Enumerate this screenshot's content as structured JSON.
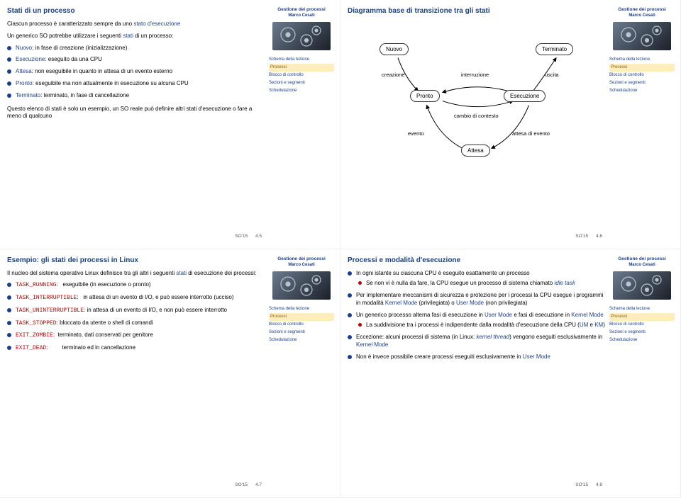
{
  "course": {
    "title": "Gestione dei processi",
    "author": "Marco Cesati",
    "code": "SO'15"
  },
  "nav": {
    "items": [
      "Schema della lezione",
      "Processi",
      "Blocco di controllo",
      "Sezioni e segmenti",
      "Schedulazione"
    ],
    "active_index": 1
  },
  "colors": {
    "blue": "#1a3f8a",
    "red": "#c00000",
    "bullet_blue": "#1a3f8a",
    "bullet_red": "#c00000"
  },
  "slide1": {
    "page": "4.5",
    "title": "Stati di un processo",
    "intro_a": "Ciascun processo è caratterizzato sempre da uno ",
    "intro_b": "stato d'esecuzione",
    "lead": "Un generico SO potrebbe utilizzare i seguenti ",
    "lead_hl": "stati",
    "lead_tail": " di un processo:",
    "items": [
      {
        "t": "Nuovo",
        "d": ": in fase di creazione (inizializzazione)"
      },
      {
        "t": "Esecuzione",
        "d": ": eseguito da una CPU"
      },
      {
        "t": "Attesa",
        "d": ": non eseguibile in quanto in attesa di un evento esterno"
      },
      {
        "t": "Pronto",
        "d": ": eseguibile ma non attualmente in esecuzione su alcuna CPU"
      },
      {
        "t": "Terminato",
        "d": ": terminato, in fase di cancellazione"
      }
    ],
    "note": "Questo elenco di stati è solo un esempio, un SO reale può definire altri stati d'esecuzione o fare a meno di qualcuno"
  },
  "slide2": {
    "page": "4.6",
    "title": "Diagramma base di transizione tra gli stati",
    "states": {
      "nuovo": "Nuovo",
      "terminato": "Terminato",
      "pronto": "Pronto",
      "esecuzione": "Esecuzione",
      "attesa": "Attesa"
    },
    "labels": {
      "creazione": "creazione",
      "interruzione": "interruzione",
      "uscita": "uscita",
      "cambio": "cambio di contesto",
      "evento": "evento",
      "attesa_evento": "attesa di evento"
    },
    "style": {
      "node_border": "#333333",
      "node_bg": "#ffffff",
      "edge_color": "#000000",
      "node_radius": 10,
      "font_size": 8
    }
  },
  "slide3": {
    "page": "4.7",
    "title": "Esempio: gli stati dei processi in Linux",
    "intro_a": "Il nucleo del sistema operativo Linux definisce tra gli altri i seguenti ",
    "intro_b": "stati",
    "intro_c": " di esecuzione dei processi:",
    "items": [
      {
        "c": "TASK_RUNNING",
        "d": "eseguibile (in esecuzione o pronto)"
      },
      {
        "c": "TASK_INTERRUPTIBLE",
        "d": "in attesa di un evento di I/O, e può essere interrotto (ucciso)"
      },
      {
        "c": "TASK_UNINTERRUPTIBLE",
        "d": "in attesa di un evento di I/O, e non può essere interrotto"
      },
      {
        "c": "TASK_STOPPED",
        "d": "bloccato da utente o shell di comandi"
      },
      {
        "c": "EXIT_ZOMBIE",
        "d": "terminato, dati conservati per genitore"
      },
      {
        "c": "EXIT_DEAD",
        "d": "terminato ed in cancellazione"
      }
    ]
  },
  "slide4": {
    "page": "4.8",
    "title": "Processi e modalità d'esecuzione",
    "b1": "In ogni istante su ciascuna CPU è eseguito esattamente un processo",
    "b1s_a": "Se non vi è nulla da fare, la CPU esegue un processo di sistema chiamato ",
    "b1s_b": "idle task",
    "b2_a": "Per implementare meccanismi di sicurezza e protezione per i processi la CPU esegue i programmi in modalità ",
    "b2_km": "Kernel Mode",
    "b2_mid": " (privilegiata) o ",
    "b2_um": "User Mode",
    "b2_tail": " (non privilegiata)",
    "b3_a": "Un generico processo alterna fasi di esecuzione in ",
    "b3_um": "User Mode",
    "b3_mid": " e fasi di esecuzione in ",
    "b3_km": "Kernel Mode",
    "b3s_a": "La suddivisione tra i processi è indipendente dalla modalità d'esecuzione della CPU (",
    "b3s_um": "UM",
    "b3s_mid": " e ",
    "b3s_km": "KM",
    "b3s_tail": ")",
    "b4_a": "Eccezione: alcuni processi di sistema (in Linux: ",
    "b4_i": "kernel thread",
    "b4_b": ") vengono eseguiti esclusivamente in ",
    "b4_km": "Kernel Mode",
    "b5_a": "Non è invece possibile creare processi eseguiti esclusivamente in ",
    "b5_um": "User Mode"
  }
}
